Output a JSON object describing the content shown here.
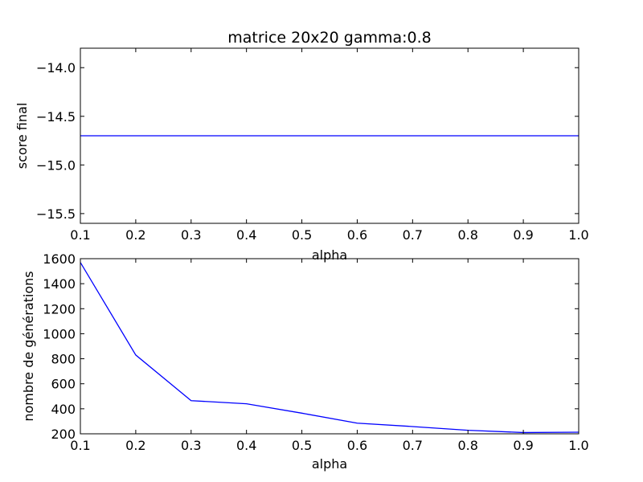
{
  "figure": {
    "title": "matrice 20x20 gamma:0.8"
  },
  "chart_data": [
    {
      "type": "line",
      "title": "matrice 20x20 gamma:0.8",
      "xlabel": "alpha",
      "ylabel": "score final",
      "xlim": [
        0.1,
        1.0
      ],
      "ylim": [
        -15.6,
        -13.8
      ],
      "xticks": [
        0.1,
        0.2,
        0.3,
        0.4,
        0.5,
        0.6,
        0.7,
        0.8,
        0.9,
        1.0
      ],
      "xtick_labels": [
        "0.1",
        "0.2",
        "0.3",
        "0.4",
        "0.5",
        "0.6",
        "0.7",
        "0.8",
        "0.9",
        "1.0"
      ],
      "yticks": [
        -14.0,
        -14.5,
        -15.0,
        -15.5
      ],
      "ytick_labels": [
        "−14.0",
        "−14.5",
        "−15.0",
        "−15.5"
      ],
      "grid": false,
      "series": [
        {
          "color": "#0000ff",
          "x": [
            0.1,
            0.2,
            0.3,
            0.4,
            0.5,
            0.6,
            0.7,
            0.8,
            0.9,
            1.0
          ],
          "y": [
            -14.7,
            -14.7,
            -14.7,
            -14.7,
            -14.7,
            -14.7,
            -14.7,
            -14.7,
            -14.7,
            -14.7
          ]
        }
      ]
    },
    {
      "type": "line",
      "title": "",
      "xlabel": "alpha",
      "ylabel": "nombre de générations",
      "xlim": [
        0.1,
        1.0
      ],
      "ylim": [
        200,
        1600
      ],
      "xticks": [
        0.1,
        0.2,
        0.3,
        0.4,
        0.5,
        0.6,
        0.7,
        0.8,
        0.9,
        1.0
      ],
      "xtick_labels": [
        "0.1",
        "0.2",
        "0.3",
        "0.4",
        "0.5",
        "0.6",
        "0.7",
        "0.8",
        "0.9",
        "1.0"
      ],
      "yticks": [
        200,
        400,
        600,
        800,
        1000,
        1200,
        1400,
        1600
      ],
      "ytick_labels": [
        "200",
        "400",
        "600",
        "800",
        "1000",
        "1200",
        "1400",
        "1600"
      ],
      "grid": false,
      "series": [
        {
          "color": "#0000ff",
          "x": [
            0.1,
            0.2,
            0.3,
            0.4,
            0.5,
            0.6,
            0.7,
            0.8,
            0.9,
            1.0
          ],
          "y": [
            1570,
            830,
            465,
            440,
            365,
            285,
            258,
            228,
            210,
            213
          ]
        }
      ]
    }
  ]
}
